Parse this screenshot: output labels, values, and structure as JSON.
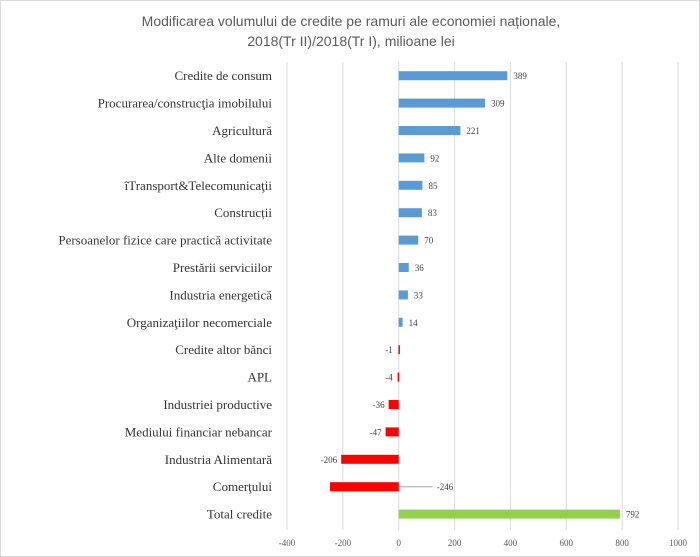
{
  "chart_data": {
    "type": "bar",
    "orientation": "horizontal",
    "title_line1": "Modificarea volumului de credite pe ramuri ale economiei naționale,",
    "title_line2": "2018(Tr II)/2018(Tr I), milioane lei",
    "categories": [
      "Credite de consum",
      "Procurarea/construcţia imobilului",
      "Agricultură",
      "Alte domenii",
      "îTransport&Telecomunicaţii",
      "Construcții",
      "Persoanelor fizice care practică activitate",
      "Prestării serviciilor",
      "Industria energetică",
      "Organizaţiilor necomerciale",
      "Credite altor bănci",
      "APL",
      "Industriei productive",
      "Mediului financiar nebancar",
      "Industria Alimentară",
      "Comerţului",
      "Total credite"
    ],
    "values": [
      389,
      309,
      221,
      92,
      85,
      83,
      70,
      36,
      33,
      14,
      -1,
      -4,
      -36,
      -47,
      -206,
      -246,
      792
    ],
    "value_labels": [
      "389",
      "309",
      "221",
      "92",
      "85",
      "83",
      "70",
      "36",
      "33",
      "14",
      "-1",
      "-4",
      "-36",
      "-47",
      "-206",
      "-246",
      "792"
    ],
    "xlim": [
      -400,
      1000
    ],
    "ticks": [
      "-400",
      "-200",
      "0",
      "200",
      "400",
      "600",
      "800",
      "1000"
    ],
    "grid": true,
    "colors": {
      "positive": "#5b9bd5",
      "negative": "#ff0000",
      "total": "#92d050",
      "grid": "#d9d9d9",
      "title": "#595959"
    }
  }
}
